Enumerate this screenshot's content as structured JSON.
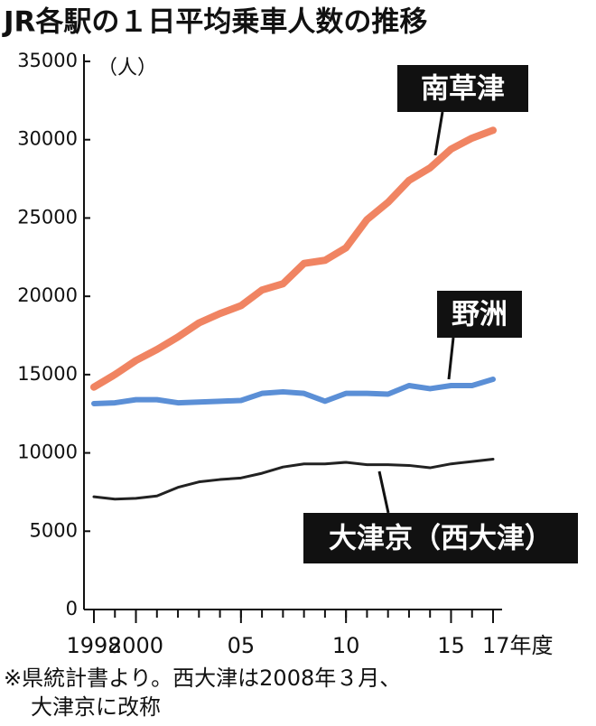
{
  "chart_data": {
    "type": "line",
    "title": "JR各駅の１日平均乗車人数の推移",
    "unit": "（人）",
    "x": [
      1998,
      1999,
      2000,
      2001,
      2002,
      2003,
      2004,
      2005,
      2006,
      2007,
      2008,
      2009,
      2010,
      2011,
      2012,
      2013,
      2014,
      2015,
      2016,
      2017
    ],
    "xlim": [
      1998,
      2017
    ],
    "xticks": [
      1998,
      2000,
      {
        "value": 2005,
        "label": "05"
      },
      {
        "value": 2010,
        "label": "10"
      },
      {
        "value": 2015,
        "label": "15"
      },
      {
        "value": 2017,
        "label": "17年度"
      }
    ],
    "ylim": [
      0,
      35000
    ],
    "yticks": [
      0,
      5000,
      10000,
      15000,
      20000,
      25000,
      30000,
      35000
    ],
    "series": [
      {
        "name": "南草津",
        "color": "#f08462",
        "values": [
          14200,
          15000,
          15900,
          16600,
          17400,
          18300,
          18900,
          19400,
          20400,
          20800,
          22100,
          22300,
          23100,
          24900,
          26000,
          27400,
          28200,
          29400,
          30100,
          30600
        ]
      },
      {
        "name": "野洲",
        "color": "#5b8fd6",
        "values": [
          13150,
          13200,
          13400,
          13400,
          13200,
          13250,
          13300,
          13350,
          13800,
          13900,
          13800,
          13300,
          13800,
          13800,
          13750,
          14300,
          14100,
          14300,
          14300,
          14700
        ]
      },
      {
        "name": "大津京（西大津）",
        "color": "#222222",
        "values": [
          7200,
          7050,
          7100,
          7250,
          7800,
          8150,
          8300,
          8400,
          8700,
          9100,
          9300,
          9300,
          9400,
          9250,
          9250,
          9200,
          9050,
          9300,
          9450,
          9600
        ]
      }
    ],
    "note": [
      "※県統計書より。西大津は2008年３月、",
      "大津京に改称"
    ]
  }
}
